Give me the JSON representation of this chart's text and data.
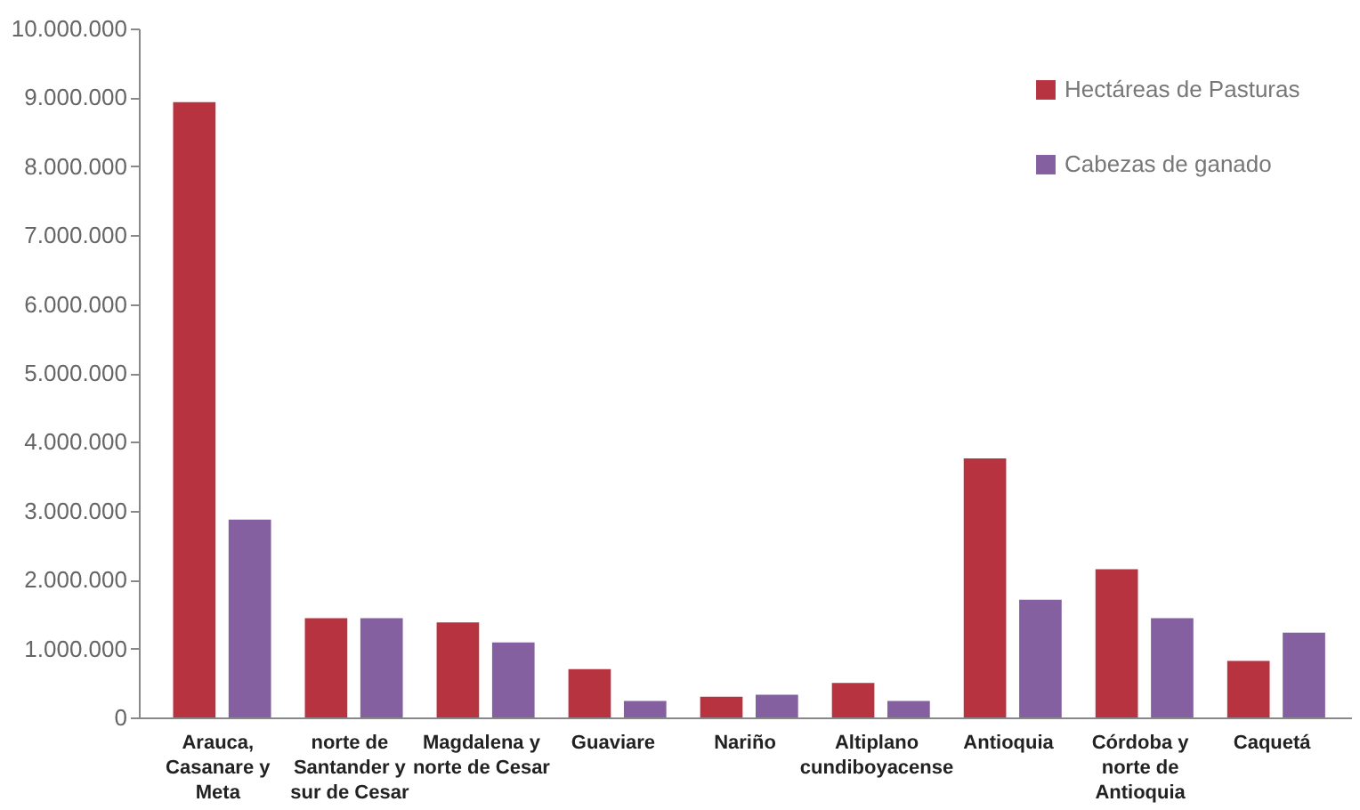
{
  "chart_data": {
    "type": "bar",
    "categories": [
      "Arauca, Casanare y Meta",
      "norte de Santander y sur de Cesar",
      "Magdalena y norte de Cesar",
      "Guaviare",
      "Nariño",
      "Altiplano cundiboyacense",
      "Antioquia",
      "Córdoba y norte de Antioquia",
      "Caquetá"
    ],
    "series": [
      {
        "name": "Hectáreas de Pasturas",
        "color": "#b83340",
        "values": [
          8930000,
          1440000,
          1380000,
          700000,
          300000,
          500000,
          3760000,
          2150000,
          820000
        ]
      },
      {
        "name": "Cabezas de ganado",
        "color": "#8460a0",
        "values": [
          2870000,
          1440000,
          1090000,
          240000,
          330000,
          240000,
          1710000,
          1440000,
          1230000
        ]
      }
    ],
    "ylim": [
      0,
      10000000
    ],
    "yticks": [
      0,
      {
        "value": 1000000,
        "label": "1.000.000"
      },
      {
        "value": 2000000,
        "label": "2.000.000"
      },
      {
        "value": 3000000,
        "label": "3.000.000"
      },
      {
        "value": 4000000,
        "label": "4.000.000"
      },
      {
        "value": 5000000,
        "label": "5.000.000"
      },
      {
        "value": 6000000,
        "label": "6.000.000"
      },
      {
        "value": 7000000,
        "label": "7.000.000"
      },
      {
        "value": 8000000,
        "label": "8.000.000"
      },
      {
        "value": 9000000,
        "label": "9.000.000"
      },
      {
        "value": 10000000,
        "label": "10.000.000"
      }
    ],
    "grid": false,
    "legend": "top right"
  }
}
